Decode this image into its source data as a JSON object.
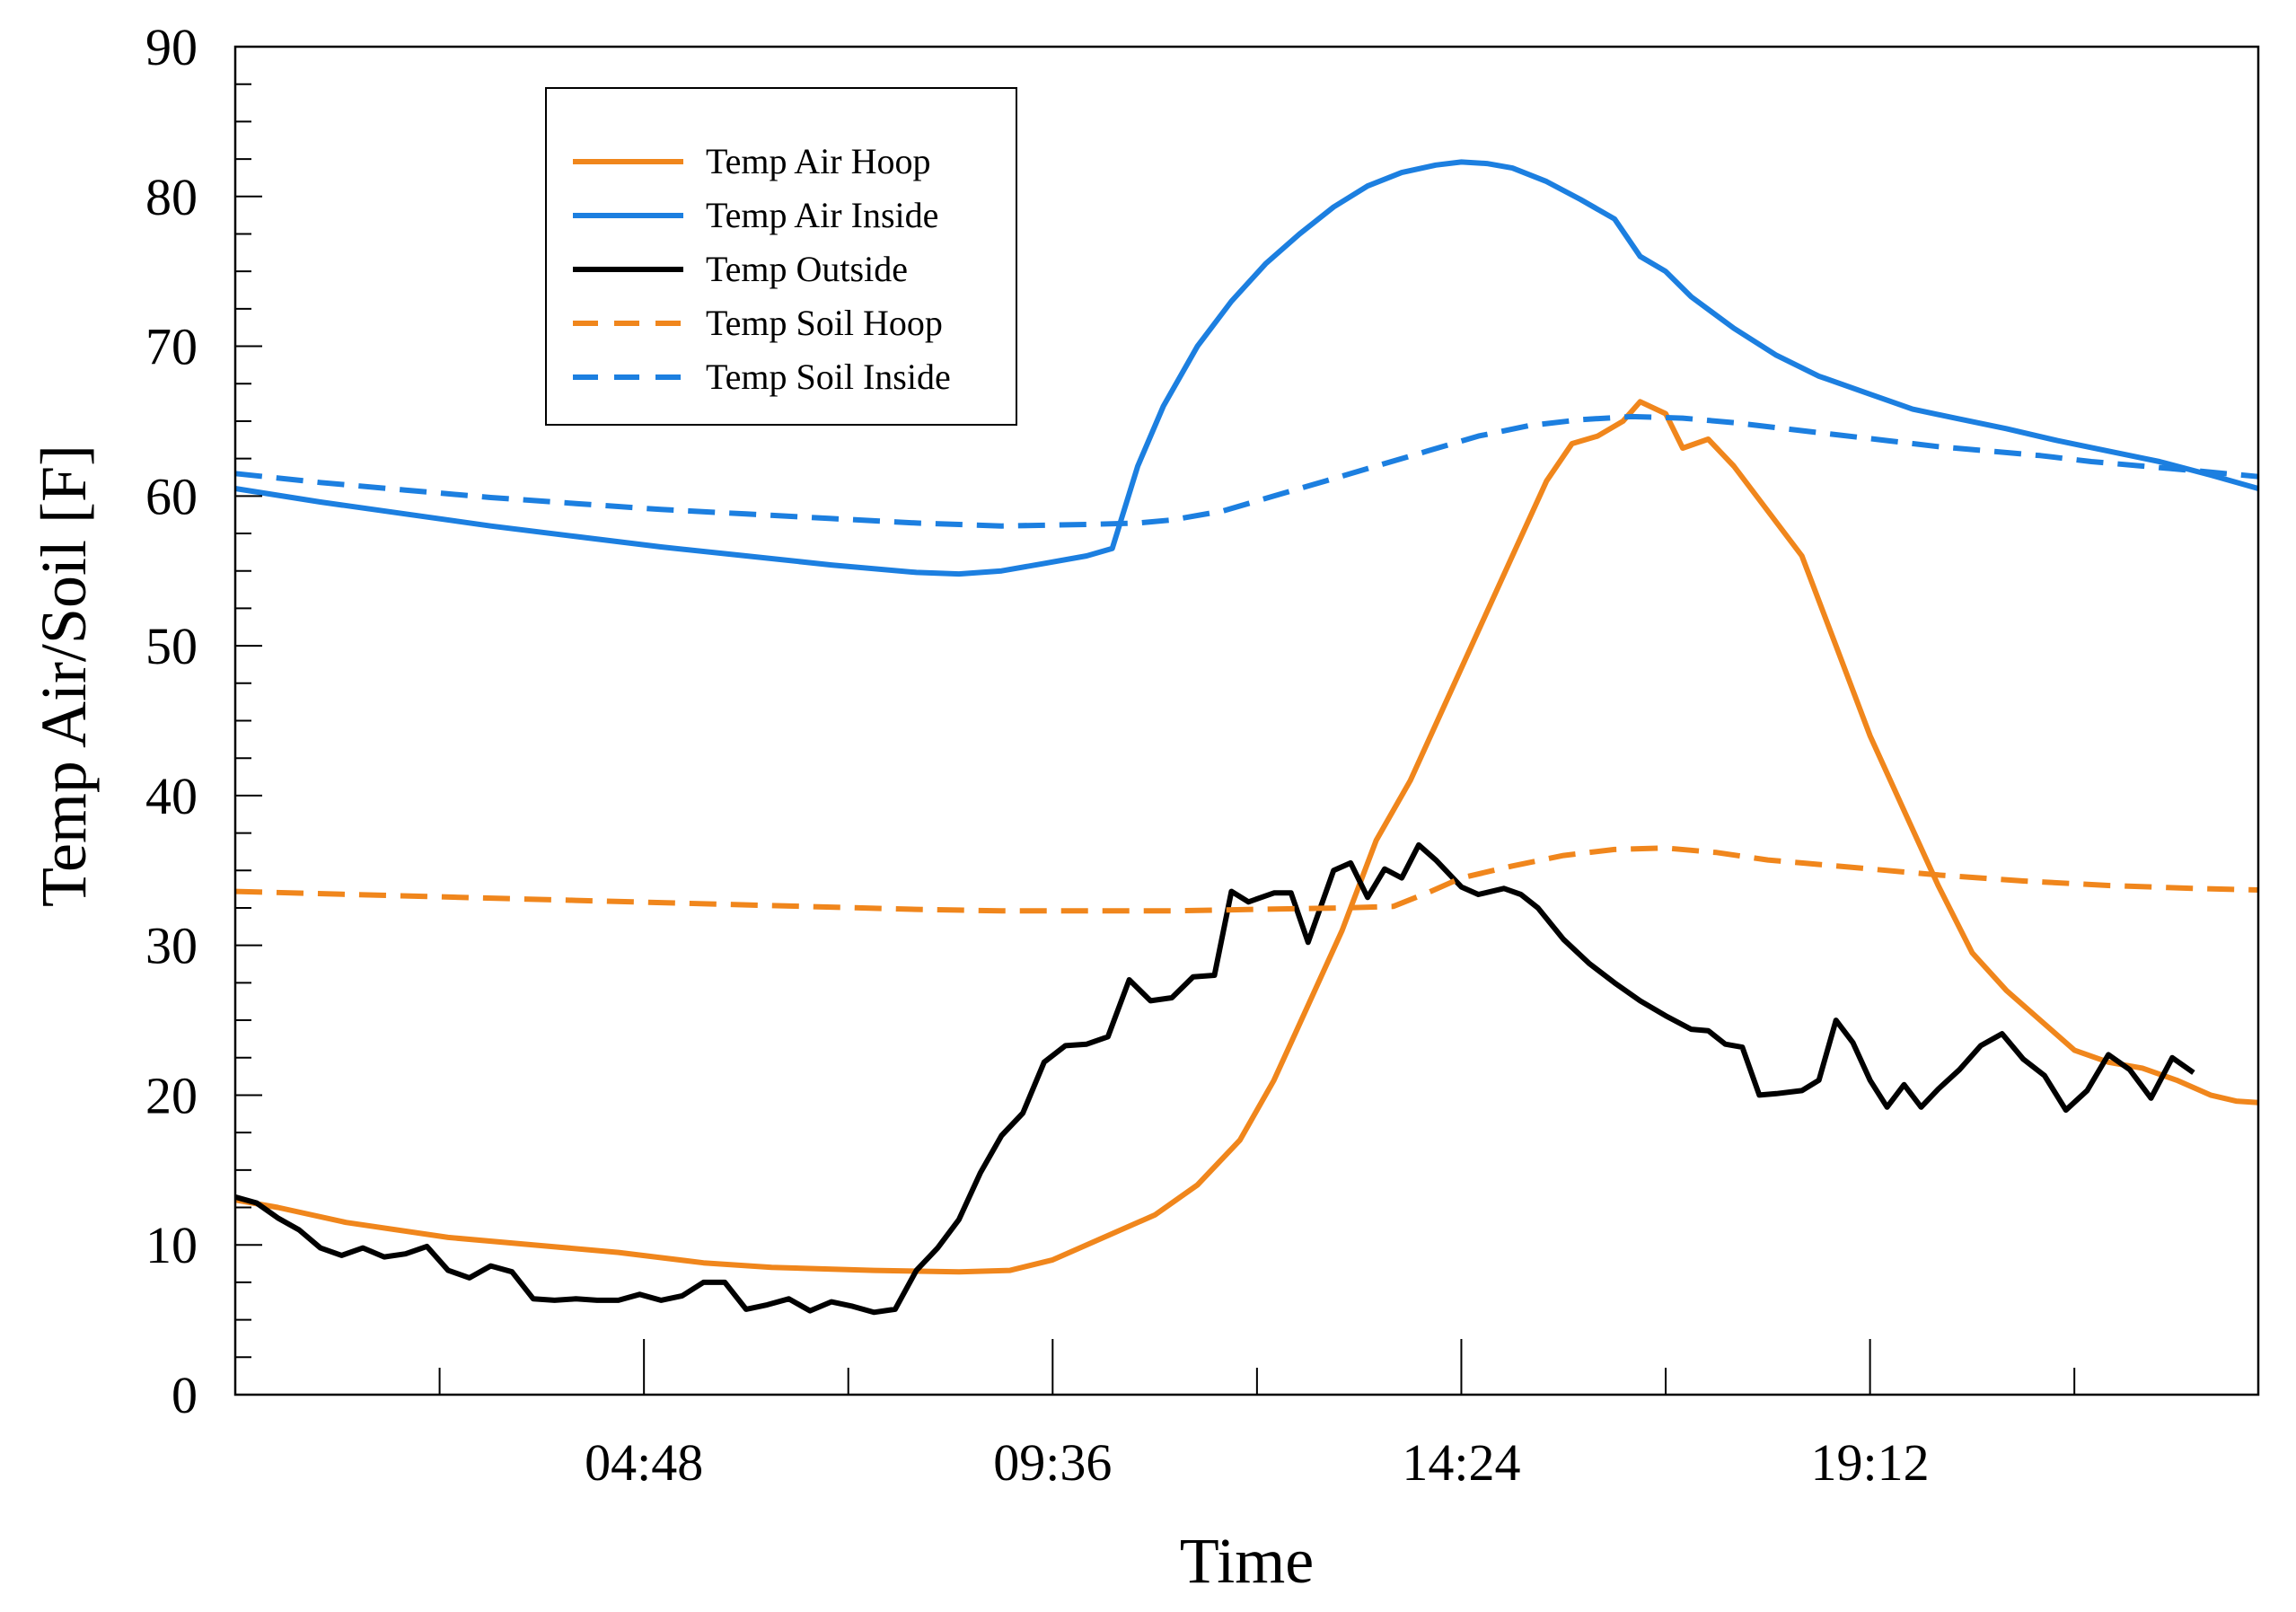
{
  "chart_data": {
    "type": "line",
    "title": "",
    "xlabel": "Time",
    "ylabel": "Temp Air/Soil [F]",
    "x_unit": "hours",
    "xlim": [
      0,
      23.76
    ],
    "ylim": [
      0,
      90
    ],
    "y_ticks": [
      0,
      10,
      20,
      30,
      40,
      50,
      60,
      70,
      80,
      90
    ],
    "x_ticks": [
      {
        "value": 4.8,
        "label": "04:48"
      },
      {
        "value": 9.6,
        "label": "09:36"
      },
      {
        "value": 14.4,
        "label": "14:24"
      },
      {
        "value": 19.2,
        "label": "19:12"
      }
    ],
    "x_minor_ticks": [
      2.4,
      4.8,
      7.2,
      9.6,
      12.0,
      14.4,
      16.8,
      19.2,
      21.6
    ],
    "grid": false,
    "legend_position": "top-left",
    "series": [
      {
        "name": "Temp Air Hoop",
        "color": "#F0861C",
        "dash": "solid",
        "points": [
          [
            0,
            13
          ],
          [
            0.5,
            12.5
          ],
          [
            1.3,
            11.5
          ],
          [
            2.5,
            10.5
          ],
          [
            3.5,
            10.0
          ],
          [
            4.5,
            9.5
          ],
          [
            5.5,
            8.8
          ],
          [
            6.3,
            8.5
          ],
          [
            7.5,
            8.3
          ],
          [
            8.5,
            8.2
          ],
          [
            9.1,
            8.3
          ],
          [
            9.6,
            9.0
          ],
          [
            10.2,
            10.5
          ],
          [
            10.8,
            12.0
          ],
          [
            11.3,
            14.0
          ],
          [
            11.8,
            17.0
          ],
          [
            12.2,
            21.0
          ],
          [
            12.6,
            26.0
          ],
          [
            13.0,
            31.0
          ],
          [
            13.4,
            37.0
          ],
          [
            13.8,
            41.0
          ],
          [
            14.2,
            46.0
          ],
          [
            14.6,
            51.0
          ],
          [
            15.0,
            56.0
          ],
          [
            15.4,
            61.0
          ],
          [
            15.7,
            63.5
          ],
          [
            16.0,
            64.0
          ],
          [
            16.3,
            65.0
          ],
          [
            16.5,
            66.3
          ],
          [
            16.8,
            65.5
          ],
          [
            17.0,
            63.2
          ],
          [
            17.3,
            63.8
          ],
          [
            17.6,
            62.0
          ],
          [
            18.0,
            59.0
          ],
          [
            18.4,
            56.0
          ],
          [
            18.8,
            50.0
          ],
          [
            19.2,
            44.0
          ],
          [
            19.6,
            39.0
          ],
          [
            20.0,
            34.0
          ],
          [
            20.4,
            29.5
          ],
          [
            20.8,
            27.0
          ],
          [
            21.2,
            25.0
          ],
          [
            21.6,
            23.0
          ],
          [
            22.0,
            22.2
          ],
          [
            22.4,
            21.8
          ],
          [
            22.8,
            21.0
          ],
          [
            23.2,
            20.0
          ],
          [
            23.5,
            19.6
          ],
          [
            23.76,
            19.5
          ]
        ]
      },
      {
        "name": "Temp Air Inside",
        "color": "#1C7FE0",
        "dash": "solid",
        "points": [
          [
            0,
            60.5
          ],
          [
            1,
            59.6
          ],
          [
            2,
            58.8
          ],
          [
            3,
            58.0
          ],
          [
            4,
            57.3
          ],
          [
            5,
            56.6
          ],
          [
            6,
            56.0
          ],
          [
            7,
            55.4
          ],
          [
            8,
            54.9
          ],
          [
            8.5,
            54.8
          ],
          [
            9.0,
            55.0
          ],
          [
            9.5,
            55.5
          ],
          [
            10.0,
            56.0
          ],
          [
            10.3,
            56.5
          ],
          [
            10.6,
            62.0
          ],
          [
            10.9,
            66.0
          ],
          [
            11.3,
            70.0
          ],
          [
            11.7,
            73.0
          ],
          [
            12.1,
            75.5
          ],
          [
            12.5,
            77.5
          ],
          [
            12.9,
            79.3
          ],
          [
            13.3,
            80.7
          ],
          [
            13.7,
            81.6
          ],
          [
            14.1,
            82.1
          ],
          [
            14.4,
            82.3
          ],
          [
            14.7,
            82.2
          ],
          [
            15.0,
            81.9
          ],
          [
            15.4,
            81.0
          ],
          [
            15.8,
            79.8
          ],
          [
            16.2,
            78.5
          ],
          [
            16.5,
            76.0
          ],
          [
            16.8,
            75.0
          ],
          [
            17.1,
            73.3
          ],
          [
            17.6,
            71.2
          ],
          [
            18.1,
            69.4
          ],
          [
            18.6,
            68.0
          ],
          [
            19.2,
            66.8
          ],
          [
            19.7,
            65.8
          ],
          [
            20.2,
            65.2
          ],
          [
            20.8,
            64.5
          ],
          [
            21.4,
            63.7
          ],
          [
            22.0,
            63.0
          ],
          [
            22.6,
            62.3
          ],
          [
            23.2,
            61.4
          ],
          [
            23.76,
            60.5
          ]
        ]
      },
      {
        "name": "Temp Outside",
        "color": "#000000",
        "dash": "solid",
        "points": [
          [
            0,
            13.2
          ],
          [
            0.25,
            12.8
          ],
          [
            0.5,
            11.8
          ],
          [
            0.75,
            11.0
          ],
          [
            1.0,
            9.8
          ],
          [
            1.25,
            9.3
          ],
          [
            1.5,
            9.8
          ],
          [
            1.75,
            9.2
          ],
          [
            2.0,
            9.4
          ],
          [
            2.25,
            9.9
          ],
          [
            2.5,
            8.3
          ],
          [
            2.75,
            7.8
          ],
          [
            3.0,
            8.6
          ],
          [
            3.25,
            8.2
          ],
          [
            3.5,
            6.4
          ],
          [
            3.75,
            6.3
          ],
          [
            4.0,
            6.4
          ],
          [
            4.25,
            6.3
          ],
          [
            4.5,
            6.3
          ],
          [
            4.75,
            6.7
          ],
          [
            5.0,
            6.3
          ],
          [
            5.25,
            6.6
          ],
          [
            5.5,
            7.5
          ],
          [
            5.75,
            7.5
          ],
          [
            6.0,
            5.7
          ],
          [
            6.25,
            6.0
          ],
          [
            6.5,
            6.4
          ],
          [
            6.75,
            5.6
          ],
          [
            7.0,
            6.2
          ],
          [
            7.25,
            5.9
          ],
          [
            7.5,
            5.5
          ],
          [
            7.75,
            5.7
          ],
          [
            8.0,
            8.3
          ],
          [
            8.25,
            9.8
          ],
          [
            8.5,
            11.7
          ],
          [
            8.75,
            14.8
          ],
          [
            9.0,
            17.3
          ],
          [
            9.25,
            18.8
          ],
          [
            9.5,
            22.2
          ],
          [
            9.75,
            23.3
          ],
          [
            10.0,
            23.4
          ],
          [
            10.25,
            23.9
          ],
          [
            10.5,
            27.7
          ],
          [
            10.75,
            26.3
          ],
          [
            11.0,
            26.5
          ],
          [
            11.25,
            27.9
          ],
          [
            11.5,
            28.0
          ],
          [
            11.7,
            33.6
          ],
          [
            11.9,
            32.9
          ],
          [
            12.2,
            33.5
          ],
          [
            12.4,
            33.5
          ],
          [
            12.6,
            30.2
          ],
          [
            12.9,
            35.0
          ],
          [
            13.1,
            35.5
          ],
          [
            13.3,
            33.2
          ],
          [
            13.5,
            35.1
          ],
          [
            13.7,
            34.5
          ],
          [
            13.9,
            36.7
          ],
          [
            14.1,
            35.7
          ],
          [
            14.4,
            33.9
          ],
          [
            14.6,
            33.4
          ],
          [
            14.9,
            33.8
          ],
          [
            15.1,
            33.4
          ],
          [
            15.3,
            32.5
          ],
          [
            15.6,
            30.4
          ],
          [
            15.9,
            28.8
          ],
          [
            16.2,
            27.5
          ],
          [
            16.5,
            26.3
          ],
          [
            16.8,
            25.3
          ],
          [
            17.1,
            24.4
          ],
          [
            17.3,
            24.3
          ],
          [
            17.5,
            23.4
          ],
          [
            17.7,
            23.2
          ],
          [
            17.9,
            20.0
          ],
          [
            18.1,
            20.1
          ],
          [
            18.4,
            20.3
          ],
          [
            18.6,
            21.0
          ],
          [
            18.8,
            25.0
          ],
          [
            19.0,
            23.5
          ],
          [
            19.2,
            21.0
          ],
          [
            19.4,
            19.2
          ],
          [
            19.6,
            20.7
          ],
          [
            19.8,
            19.2
          ],
          [
            20.0,
            20.4
          ],
          [
            20.25,
            21.7
          ],
          [
            20.5,
            23.3
          ],
          [
            20.75,
            24.1
          ],
          [
            21.0,
            22.4
          ],
          [
            21.25,
            21.3
          ],
          [
            21.5,
            19.0
          ],
          [
            21.75,
            20.3
          ],
          [
            22.0,
            22.7
          ],
          [
            22.25,
            21.7
          ],
          [
            22.5,
            19.8
          ],
          [
            22.75,
            22.5
          ],
          [
            23.0,
            21.5
          ]
        ]
      },
      {
        "name": "Temp Soil Hoop",
        "color": "#F0861C",
        "dash": "dashed",
        "points": [
          [
            0,
            33.6
          ],
          [
            2,
            33.3
          ],
          [
            4,
            33.0
          ],
          [
            6,
            32.7
          ],
          [
            8,
            32.4
          ],
          [
            9,
            32.3
          ],
          [
            10,
            32.3
          ],
          [
            11,
            32.3
          ],
          [
            12,
            32.4
          ],
          [
            13,
            32.5
          ],
          [
            13.6,
            32.6
          ],
          [
            14.0,
            33.5
          ],
          [
            14.4,
            34.5
          ],
          [
            15.0,
            35.3
          ],
          [
            15.6,
            36.0
          ],
          [
            16.2,
            36.4
          ],
          [
            16.8,
            36.5
          ],
          [
            17.4,
            36.2
          ],
          [
            18.0,
            35.7
          ],
          [
            19.0,
            35.2
          ],
          [
            20.0,
            34.7
          ],
          [
            21.0,
            34.3
          ],
          [
            22.0,
            34.0
          ],
          [
            23.0,
            33.8
          ],
          [
            23.76,
            33.7
          ]
        ]
      },
      {
        "name": "Temp Soil Inside",
        "color": "#1C7FE0",
        "dash": "dashed",
        "points": [
          [
            0,
            61.5
          ],
          [
            1,
            60.9
          ],
          [
            2,
            60.4
          ],
          [
            3,
            59.9
          ],
          [
            4,
            59.5
          ],
          [
            5,
            59.1
          ],
          [
            6,
            58.8
          ],
          [
            7,
            58.5
          ],
          [
            8,
            58.2
          ],
          [
            9,
            58.0
          ],
          [
            10,
            58.1
          ],
          [
            10.6,
            58.2
          ],
          [
            11.0,
            58.4
          ],
          [
            11.6,
            59.0
          ],
          [
            12.2,
            60.0
          ],
          [
            12.8,
            61.0
          ],
          [
            13.4,
            62.0
          ],
          [
            14.0,
            63.0
          ],
          [
            14.6,
            64.0
          ],
          [
            15.2,
            64.7
          ],
          [
            15.8,
            65.1
          ],
          [
            16.4,
            65.3
          ],
          [
            17.0,
            65.2
          ],
          [
            17.6,
            64.9
          ],
          [
            18.2,
            64.5
          ],
          [
            18.8,
            64.1
          ],
          [
            19.4,
            63.7
          ],
          [
            20.0,
            63.3
          ],
          [
            20.6,
            63.0
          ],
          [
            21.2,
            62.7
          ],
          [
            21.8,
            62.3
          ],
          [
            22.4,
            62.0
          ],
          [
            23.0,
            61.7
          ],
          [
            23.76,
            61.3
          ]
        ]
      }
    ]
  }
}
